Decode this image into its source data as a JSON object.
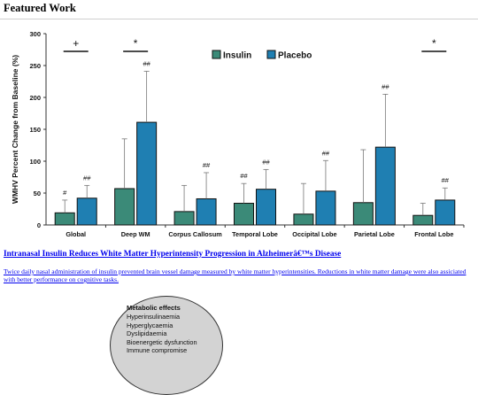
{
  "page": {
    "heading": "Featured Work",
    "article_title": "Intranasal Insulin Reduces White Matter Hyperintensity Progression in Alzheimerâ€™s Disease",
    "article_description": "Twice daily nasal administration of insulin prevented brain vessel damage measured by white matter hyperintensities. Reductions in white matter damage were also assiciated with better performance on cognitive tasks."
  },
  "metabolic": {
    "title": "Metabolic effects",
    "items": [
      "Hyperinsulinaemia",
      "Hyperglycaemia",
      "Dyslipidaemia",
      "Bioenergetic dysfunction",
      "Immune compromise"
    ]
  },
  "chart_data": {
    "type": "bar",
    "title": "",
    "xlabel": "",
    "ylabel": "WMHV Percent Change from Baseline (%)",
    "ylim": [
      0,
      300
    ],
    "yticks": [
      0,
      50,
      100,
      150,
      200,
      250,
      300
    ],
    "legend_position": "top-center",
    "grid": false,
    "categories": [
      "Global",
      "Deep WM",
      "Corpus Callosum",
      "Temporal Lobe",
      "Occipital Lobe",
      "Parietal Lobe",
      "Frontal Lobe"
    ],
    "series": [
      {
        "name": "Insulin",
        "color": "#3b8a78",
        "values": [
          19,
          57,
          21,
          34,
          17,
          35,
          15
        ],
        "errors": [
          20,
          78,
          41,
          31,
          48,
          83,
          19
        ]
      },
      {
        "name": "Placebo",
        "color": "#1f7fb2",
        "values": [
          42,
          161,
          41,
          56,
          53,
          122,
          39
        ],
        "errors": [
          20,
          80,
          41,
          31,
          48,
          83,
          19
        ]
      }
    ],
    "within_group_marks": {
      "Insulin": [
        "#",
        "",
        "",
        "##",
        "",
        "",
        ""
      ],
      "Placebo": [
        "##",
        "##",
        "##",
        "##",
        "##",
        "##",
        "##"
      ]
    },
    "group_significance": [
      "+",
      "*",
      "",
      "",
      "",
      "",
      "*"
    ]
  }
}
